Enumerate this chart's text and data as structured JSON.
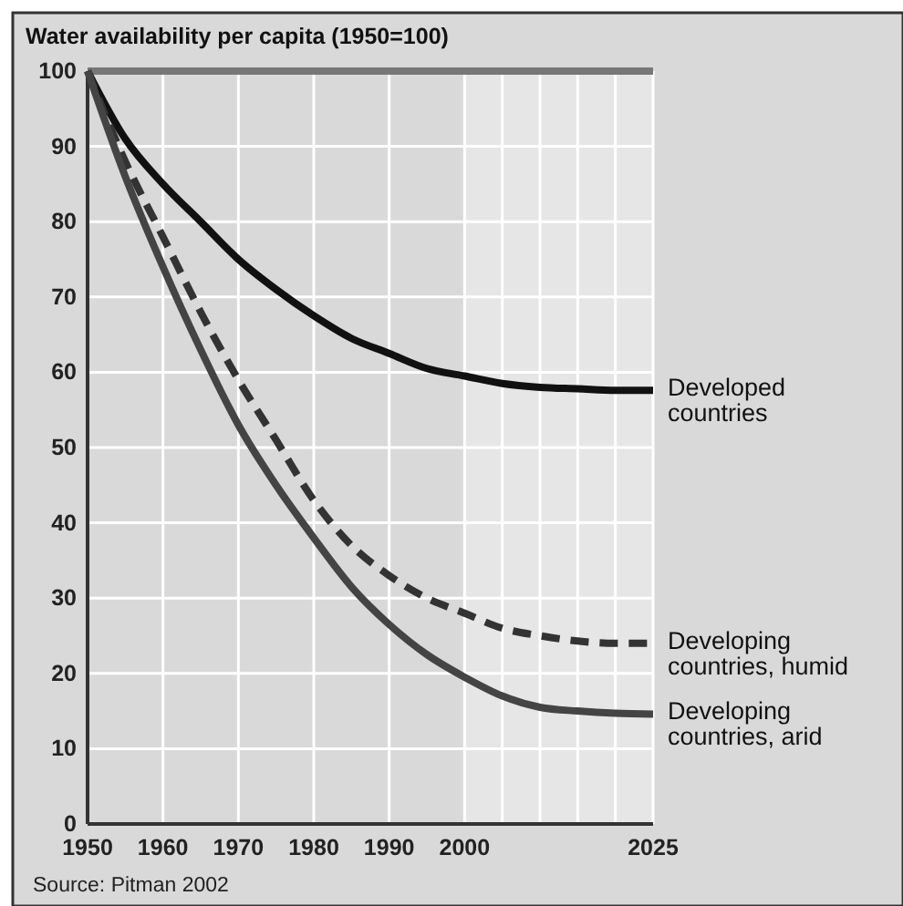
{
  "chart_data": {
    "type": "line",
    "title": "Water availability per capita (1950=100)",
    "annotations": [
      "Source: Pitman 2002"
    ],
    "x": [
      1950,
      1955,
      1960,
      1965,
      1970,
      1975,
      1980,
      1985,
      1990,
      1995,
      2000,
      2005,
      2010,
      2015,
      2020,
      2025
    ],
    "xlim": [
      1950,
      2025
    ],
    "xticks": [
      1950,
      1960,
      1970,
      1980,
      1990,
      2000,
      {
        "value": 2005,
        "label": null
      },
      {
        "value": 2010,
        "label": null
      },
      {
        "value": 2015,
        "label": null
      },
      {
        "value": 2020,
        "label": null
      },
      2025
    ],
    "ylim": [
      0,
      100
    ],
    "yticks": [
      0,
      10,
      20,
      30,
      40,
      50,
      60,
      70,
      80,
      90,
      100
    ],
    "grid": true,
    "marker": "none",
    "bands": [
      {
        "axis": "x",
        "from": 2000,
        "to": 2025,
        "color": "#e6e6e6"
      }
    ],
    "ref_lines": [
      {
        "axis": "y",
        "value": 100,
        "color": "#777777"
      }
    ],
    "series": [
      {
        "name": "Developed countries",
        "color": "#111111",
        "line_style": "solid",
        "values": [
          100,
          91,
          85,
          80,
          75,
          71,
          67.5,
          64.5,
          62.5,
          60.5,
          59.5,
          58.5,
          58,
          57.8,
          57.6,
          57.6
        ]
      },
      {
        "name": "Developing countries, humid",
        "color": "#333333",
        "line_style": "dashed",
        "values": [
          100,
          88,
          78,
          68,
          59,
          51,
          43,
          37,
          33,
          30,
          28,
          26,
          25,
          24.3,
          24,
          24
        ]
      },
      {
        "name": "Developing countries, arid",
        "color": "#444444",
        "line_style": "solid",
        "values": [
          100,
          86,
          74,
          63,
          53,
          45,
          38,
          31.5,
          26.5,
          22.5,
          19.5,
          17,
          15.5,
          15,
          14.7,
          14.6
        ]
      }
    ]
  }
}
